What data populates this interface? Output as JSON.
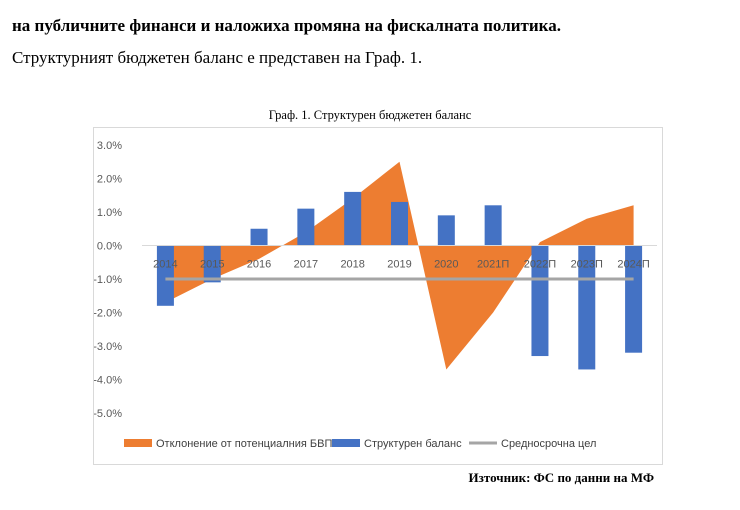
{
  "document": {
    "line1": "на публичните финанси и наложиха промяна на фискалната политика.",
    "line2": "Структурният бюджетен баланс е представен на Граф. 1.",
    "source": "Източник: ФС по данни на МФ"
  },
  "chart_data": {
    "type": "bar",
    "title": "Граф. 1. Структурен бюджетен баланс",
    "categories": [
      "2014",
      "2015",
      "2016",
      "2017",
      "2018",
      "2019",
      "2020",
      "2021П",
      "2022П",
      "2023П",
      "2024П"
    ],
    "series": [
      {
        "name": "Отклонение от потенциалния БВП",
        "type": "area",
        "color": "#ED7D31",
        "values": [
          -1.7,
          -1.0,
          -0.4,
          0.4,
          1.4,
          2.5,
          -3.7,
          -2.0,
          0.1,
          0.8,
          1.2
        ]
      },
      {
        "name": "Структурен баланс",
        "type": "bar",
        "color": "#4472C4",
        "values": [
          -1.8,
          -1.1,
          0.5,
          1.1,
          1.6,
          1.3,
          0.9,
          1.2,
          -3.3,
          -3.7,
          -3.2
        ]
      },
      {
        "name": "Средносрочна цел",
        "type": "line",
        "color": "#A5A5A5",
        "values": [
          -1.0,
          -1.0,
          -1.0,
          -1.0,
          -1.0,
          -1.0,
          -1.0,
          -1.0,
          -1.0,
          -1.0,
          -1.0
        ]
      }
    ],
    "yticks": [
      "3.0%",
      "2.0%",
      "1.0%",
      "0.0%",
      "-1.0%",
      "-2.0%",
      "-3.0%",
      "-4.0%",
      "-5.0%"
    ],
    "ylim": [
      -5,
      3
    ],
    "grid": false,
    "legend": "bottom"
  }
}
